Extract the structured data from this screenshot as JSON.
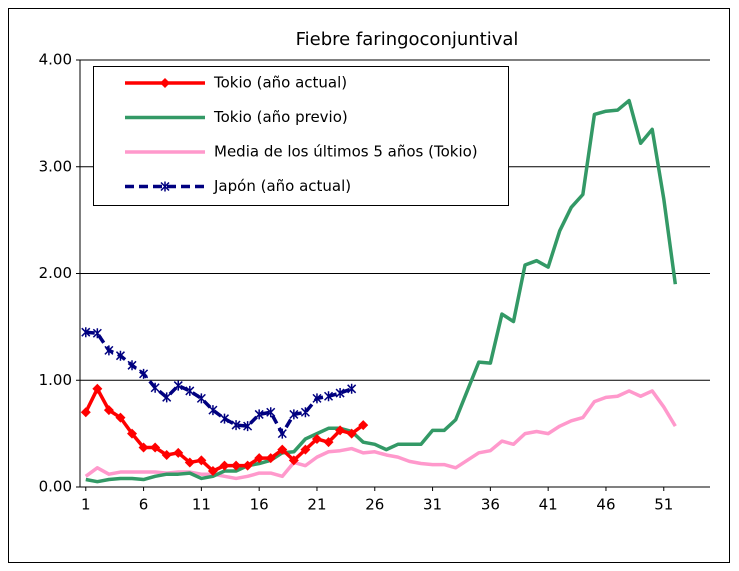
{
  "chart_data": {
    "type": "line",
    "title": "Fiebre faringoconjuntival",
    "x": [
      1,
      2,
      3,
      4,
      5,
      6,
      7,
      8,
      9,
      10,
      11,
      12,
      13,
      14,
      15,
      16,
      17,
      18,
      19,
      20,
      21,
      22,
      23,
      24,
      25,
      26,
      27,
      28,
      29,
      30,
      31,
      32,
      33,
      34,
      35,
      36,
      37,
      38,
      39,
      40,
      41,
      42,
      43,
      44,
      45,
      46,
      47,
      48,
      49,
      50,
      51,
      52
    ],
    "xlim": [
      0.5,
      55
    ],
    "xticks": [
      1,
      6,
      11,
      16,
      21,
      26,
      31,
      36,
      41,
      46,
      51
    ],
    "ylim": [
      0,
      4
    ],
    "yticks": [
      {
        "value": 0,
        "label": "0.00"
      },
      {
        "value": 1,
        "label": "1.00"
      },
      {
        "value": 2,
        "label": "2.00"
      },
      {
        "value": 3,
        "label": "3.00"
      },
      {
        "value": 4,
        "label": "4.00"
      }
    ],
    "grid": true,
    "legend": "upper left",
    "series": [
      {
        "name": "Tokio (año actual)",
        "color": "#ff0000",
        "marker": "diamond",
        "dashed": false,
        "values": [
          0.7,
          0.92,
          0.72,
          0.65,
          0.5,
          0.37,
          0.37,
          0.3,
          0.32,
          0.23,
          0.25,
          0.15,
          0.2,
          0.2,
          0.2,
          0.27,
          0.27,
          0.35,
          0.25,
          0.35,
          0.45,
          0.42,
          0.53,
          0.5,
          0.58,
          null,
          null,
          null,
          null,
          null,
          null,
          null,
          null,
          null,
          null,
          null,
          null,
          null,
          null,
          null,
          null,
          null,
          null,
          null,
          null,
          null,
          null,
          null,
          null,
          null,
          null,
          null
        ]
      },
      {
        "name": "Tokio (año previo)",
        "color": "#339966",
        "marker": "none",
        "dashed": false,
        "values": [
          0.07,
          0.05,
          0.07,
          0.08,
          0.08,
          0.07,
          0.1,
          0.12,
          0.12,
          0.13,
          0.08,
          0.1,
          0.15,
          0.15,
          0.2,
          0.22,
          0.25,
          0.32,
          0.33,
          0.45,
          0.5,
          0.55,
          0.55,
          0.52,
          0.42,
          0.4,
          0.35,
          0.4,
          0.4,
          0.4,
          0.53,
          0.53,
          0.63,
          0.9,
          1.17,
          1.16,
          1.62,
          1.55,
          2.08,
          2.12,
          2.06,
          2.4,
          2.62,
          2.74,
          3.49,
          3.52,
          3.53,
          3.62,
          3.22,
          3.35,
          2.7,
          1.9
        ]
      },
      {
        "name": "Media de los últimos 5 años (Tokio)",
        "color": "#ff99cc",
        "marker": "none",
        "dashed": false,
        "values": [
          0.1,
          0.18,
          0.12,
          0.14,
          0.14,
          0.14,
          0.14,
          0.13,
          0.14,
          0.14,
          0.12,
          0.12,
          0.1,
          0.08,
          0.1,
          0.13,
          0.13,
          0.1,
          0.23,
          0.2,
          0.28,
          0.33,
          0.34,
          0.36,
          0.32,
          0.33,
          0.3,
          0.28,
          0.24,
          0.22,
          0.21,
          0.21,
          0.18,
          0.25,
          0.32,
          0.34,
          0.43,
          0.4,
          0.5,
          0.52,
          0.5,
          0.57,
          0.62,
          0.65,
          0.8,
          0.84,
          0.85,
          0.9,
          0.85,
          0.9,
          0.75,
          0.57
        ]
      },
      {
        "name": "Japón (año actual)",
        "color": "#000080",
        "marker": "star",
        "dashed": true,
        "values": [
          1.45,
          1.44,
          1.28,
          1.23,
          1.14,
          1.06,
          0.93,
          0.84,
          0.95,
          0.9,
          0.83,
          0.72,
          0.64,
          0.58,
          0.57,
          0.68,
          0.7,
          0.5,
          0.68,
          0.7,
          0.83,
          0.85,
          0.88,
          0.92,
          null,
          null,
          null,
          null,
          null,
          null,
          null,
          null,
          null,
          null,
          null,
          null,
          null,
          null,
          null,
          null,
          null,
          null,
          null,
          null,
          null,
          null,
          null,
          null,
          null,
          null,
          null,
          null
        ]
      }
    ]
  }
}
